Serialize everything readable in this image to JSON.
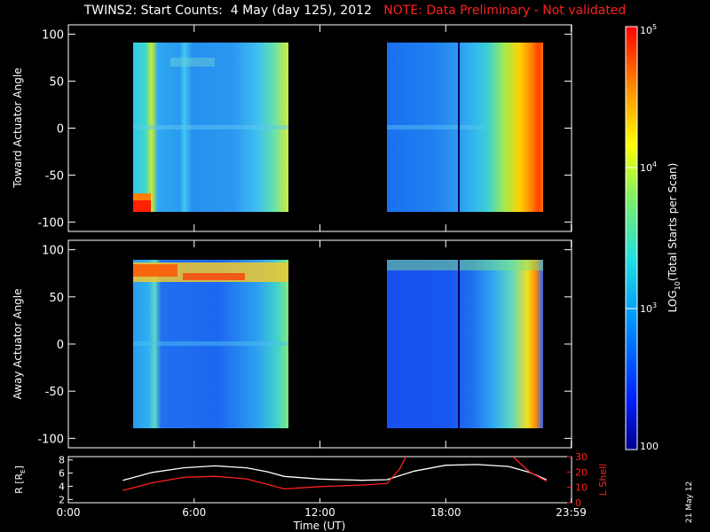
{
  "title": {
    "main": "TWINS2: Start Counts:  4 May (day 125), 2012",
    "note": "NOTE: Data Preliminary - Not validated"
  },
  "date_stamp": "21 May 12",
  "colors": {
    "background": "#000000",
    "axes": "#ffffff",
    "note": "#ff2020",
    "lshell": "#ff2020",
    "radius": "#ffffff"
  },
  "chart_data": [
    {
      "type": "heatmap",
      "name": "toward",
      "ylabel": "Toward Actuator Angle",
      "ylim": [
        -110,
        110
      ],
      "yticks": [
        -100,
        -50,
        0,
        50,
        100
      ],
      "xlim": [
        0,
        24
      ],
      "data_blocks": [
        {
          "t_start": 2.6,
          "t_end": 10.3,
          "angle_min": -88,
          "angle_max": 90
        },
        {
          "t_start": 15.2,
          "t_end": 22.8,
          "angle_min": -88,
          "angle_max": 90
        }
      ]
    },
    {
      "type": "heatmap",
      "name": "away",
      "ylabel": "Away Actuator Angle",
      "ylim": [
        -110,
        110
      ],
      "yticks": [
        -100,
        -50,
        0,
        50,
        100
      ],
      "xlim": [
        0,
        24
      ],
      "data_blocks": [
        {
          "t_start": 2.6,
          "t_end": 10.3,
          "angle_min": -88,
          "angle_max": 90
        },
        {
          "t_start": 15.2,
          "t_end": 22.8,
          "angle_min": -88,
          "angle_max": 90
        }
      ]
    },
    {
      "type": "line",
      "name": "orbit",
      "ylabel_left": "R [R",
      "ylabel_left_sub": "E",
      "ylabel_left_end": "]",
      "ylabel_right": "L Shell",
      "ylim_left": [
        1.5,
        8.5
      ],
      "yticks_left": [
        2,
        4,
        6,
        8
      ],
      "ylim_right": [
        0,
        30
      ],
      "yticks_right": [
        0,
        10,
        20,
        30
      ],
      "xlabel": "Time (UT)",
      "xtick_values": [
        0,
        6,
        12,
        18,
        23.983
      ],
      "xtick_labels": [
        "0:00",
        "6:00",
        "12:00",
        "18:00",
        "23:59"
      ],
      "series": [
        {
          "axis": "left",
          "color": "#ffffff",
          "x": [
            2.6,
            4,
            5.5,
            7,
            8.5,
            9.5,
            10.3,
            12,
            14,
            15.2,
            16.5,
            18,
            19.5,
            21,
            22,
            22.8
          ],
          "y": [
            4.9,
            6.1,
            6.8,
            7.1,
            6.8,
            6.2,
            5.5,
            5.1,
            4.9,
            5.0,
            6.3,
            7.2,
            7.3,
            7.0,
            6.1,
            5.0
          ]
        },
        {
          "axis": "right",
          "color": "#ff2020",
          "x": [
            2.6,
            4,
            5.5,
            7,
            8.5,
            10.3,
            12,
            14,
            15.2,
            15.8,
            16.1
          ],
          "y": [
            8,
            13,
            16.5,
            17.2,
            15.5,
            9,
            10.5,
            11.5,
            12.5,
            22,
            30
          ]
        },
        {
          "axis": "right",
          "color": "#ff2020",
          "x": [
            21.2,
            22,
            22.8
          ],
          "y": [
            30,
            20,
            14
          ]
        }
      ]
    }
  ],
  "colorbar": {
    "label": "LOG",
    "label_sub": "10",
    "label_end": "(Total Starts per Scan)",
    "range": [
      100,
      100000
    ],
    "ticks": [
      {
        "value": 100000,
        "text": "10",
        "sup": "5"
      },
      {
        "value": 10000,
        "text": "10",
        "sup": "4"
      },
      {
        "value": 1000,
        "text": "10",
        "sup": "3"
      },
      {
        "value": 100,
        "text": "100",
        "sup": ""
      }
    ]
  }
}
